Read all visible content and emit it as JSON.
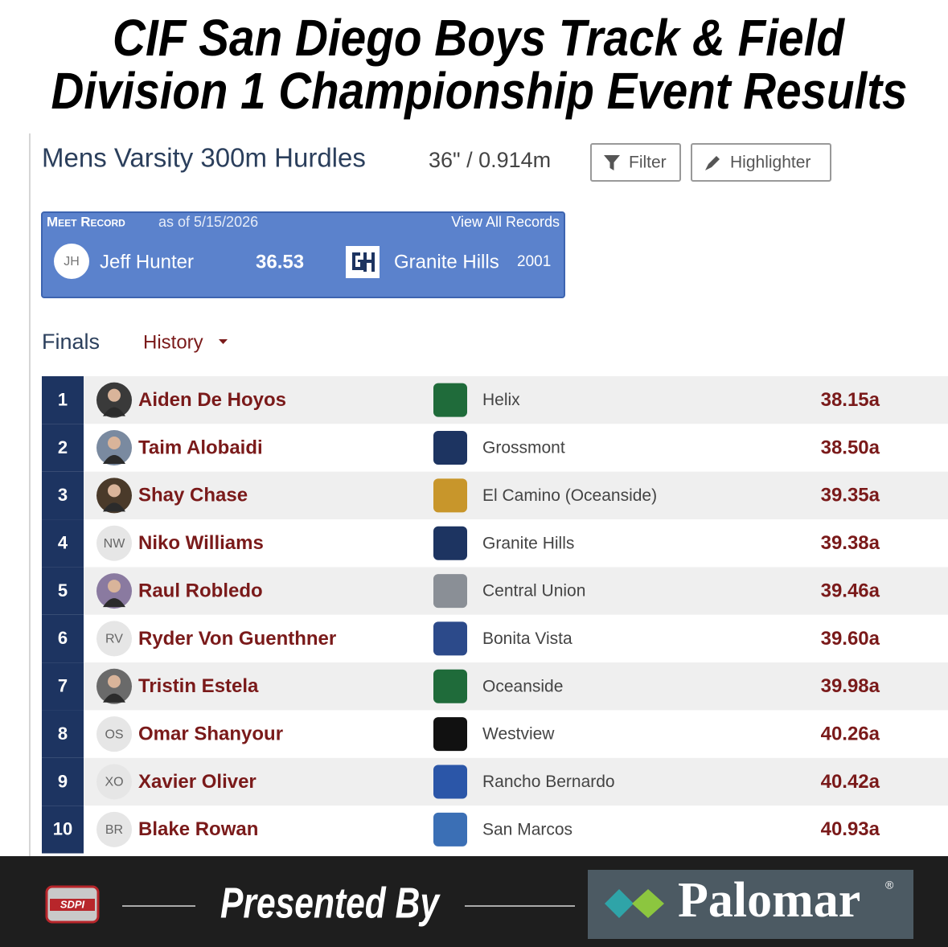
{
  "header": {
    "title_line1": "CIF San Diego Boys Track & Field",
    "title_line2": "Division 1 Championship Event Results"
  },
  "event": {
    "title": "Mens Varsity 300m Hurdles",
    "spec": "36\" / 0.914m",
    "filter_button": "Filter",
    "highlighter_button": "Highlighter"
  },
  "meet_record": {
    "label": "Meet Record",
    "as_of": "as of 5/15/2026",
    "link": "View All Records",
    "initials": "JH",
    "athlete": "Jeff Hunter",
    "mark": "36.53",
    "school": "Granite Hills",
    "year": "2001"
  },
  "tabs": {
    "finals": "Finals",
    "history": "History"
  },
  "results": {
    "rows": [
      {
        "place": "1",
        "name": "Aiden De Hoyos",
        "school": "Helix",
        "mark": "38.15a"
      },
      {
        "place": "2",
        "name": "Taim Alobaidi",
        "school": "Grossmont",
        "mark": "38.50a"
      },
      {
        "place": "3",
        "name": "Shay Chase",
        "school": "El Camino (Oceanside)",
        "mark": "39.35a"
      },
      {
        "place": "4",
        "initials": "NW",
        "name": "Niko Williams",
        "school": "Granite Hills",
        "mark": "39.38a"
      },
      {
        "place": "5",
        "name": "Raul Robledo",
        "school": "Central Union",
        "mark": "39.46a"
      },
      {
        "place": "6",
        "initials": "RV",
        "name": "Ryder Von Guenthner",
        "school": "Bonita Vista",
        "mark": "39.60a"
      },
      {
        "place": "7",
        "name": "Tristin Estela",
        "school": "Oceanside",
        "mark": "39.98a"
      },
      {
        "place": "8",
        "initials": "OS",
        "name": "Omar Shanyour",
        "school": "Westview",
        "mark": "40.26a"
      },
      {
        "place": "9",
        "initials": "XO",
        "name": "Xavier Oliver",
        "school": "Rancho Bernardo",
        "mark": "40.42a"
      },
      {
        "place": "10",
        "initials": "BR",
        "name": "Blake Rowan",
        "school": "San Marcos",
        "mark": "40.93a"
      }
    ]
  },
  "footer": {
    "logo": "SDPI",
    "presented_by": "Presented By",
    "sponsor": "Palomar",
    "registered": "®"
  }
}
